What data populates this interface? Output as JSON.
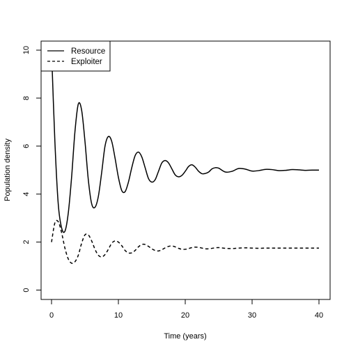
{
  "chart_data": {
    "type": "line",
    "xlabel": "Time (years)",
    "ylabel": "Population density",
    "xlim": [
      0,
      40
    ],
    "ylim": [
      0,
      10
    ],
    "xticks": [
      0,
      10,
      20,
      30,
      40
    ],
    "yticks": [
      0,
      2,
      4,
      6,
      8,
      10
    ],
    "grid": false,
    "legend_position": "top-left",
    "series": [
      {
        "name": "Resource",
        "style": "solid",
        "x": [
          0,
          0.5,
          1,
          1.5,
          2,
          2.5,
          3,
          3.5,
          4,
          4.5,
          5,
          5.5,
          6,
          6.5,
          7,
          7.5,
          8,
          8.5,
          9,
          9.5,
          10,
          10.5,
          11,
          11.5,
          12,
          12.5,
          13,
          13.5,
          14,
          14.5,
          15,
          15.5,
          16,
          16.5,
          17,
          17.5,
          18,
          18.5,
          19,
          19.5,
          20,
          20.5,
          21,
          21.5,
          22,
          22.5,
          23,
          23.5,
          24,
          24.5,
          25,
          26,
          27,
          28,
          29,
          30,
          31,
          32,
          33,
          34,
          35,
          36,
          37,
          38,
          39,
          40
        ],
        "y": [
          10,
          6.2,
          3.6,
          2.6,
          2.45,
          3.2,
          4.7,
          6.6,
          7.75,
          7.5,
          6.2,
          4.6,
          3.6,
          3.45,
          3.9,
          4.9,
          6.0,
          6.4,
          6.2,
          5.5,
          4.7,
          4.15,
          4.1,
          4.5,
          5.1,
          5.6,
          5.75,
          5.55,
          5.1,
          4.65,
          4.5,
          4.6,
          4.95,
          5.3,
          5.4,
          5.3,
          5.05,
          4.8,
          4.72,
          4.78,
          4.95,
          5.15,
          5.22,
          5.12,
          4.95,
          4.85,
          4.86,
          4.92,
          5.05,
          5.1,
          5.08,
          4.92,
          4.95,
          5.07,
          5.04,
          4.96,
          4.98,
          5.03,
          5.02,
          4.98,
          4.99,
          5.02,
          5.01,
          4.99,
          5.0,
          5.0
        ]
      },
      {
        "name": "Exploiter",
        "style": "dashed",
        "x": [
          0,
          0.5,
          1,
          1.5,
          2,
          2.5,
          3,
          3.5,
          4,
          4.5,
          5,
          5.5,
          6,
          6.5,
          7,
          7.5,
          8,
          8.5,
          9,
          9.5,
          10,
          10.5,
          11,
          11.5,
          12,
          12.5,
          13,
          13.5,
          14,
          14.5,
          15,
          15.5,
          16,
          16.5,
          17,
          17.5,
          18,
          18.5,
          19,
          19.5,
          20,
          20.5,
          21,
          21.5,
          22,
          22.5,
          23,
          23.5,
          24,
          24.5,
          25,
          26,
          27,
          28,
          29,
          30,
          31,
          32,
          33,
          34,
          35,
          36,
          37,
          38,
          39,
          40
        ],
        "y": [
          2.0,
          2.8,
          2.85,
          2.4,
          1.75,
          1.3,
          1.12,
          1.18,
          1.45,
          1.95,
          2.3,
          2.3,
          2.05,
          1.7,
          1.45,
          1.38,
          1.48,
          1.7,
          1.95,
          2.05,
          2.0,
          1.85,
          1.65,
          1.55,
          1.55,
          1.65,
          1.8,
          1.9,
          1.9,
          1.82,
          1.72,
          1.65,
          1.63,
          1.68,
          1.76,
          1.82,
          1.84,
          1.8,
          1.74,
          1.7,
          1.7,
          1.73,
          1.77,
          1.79,
          1.78,
          1.75,
          1.72,
          1.72,
          1.74,
          1.76,
          1.77,
          1.74,
          1.73,
          1.75,
          1.76,
          1.75,
          1.74,
          1.75,
          1.75,
          1.75,
          1.75,
          1.75,
          1.75,
          1.75,
          1.75,
          1.75
        ]
      }
    ]
  }
}
